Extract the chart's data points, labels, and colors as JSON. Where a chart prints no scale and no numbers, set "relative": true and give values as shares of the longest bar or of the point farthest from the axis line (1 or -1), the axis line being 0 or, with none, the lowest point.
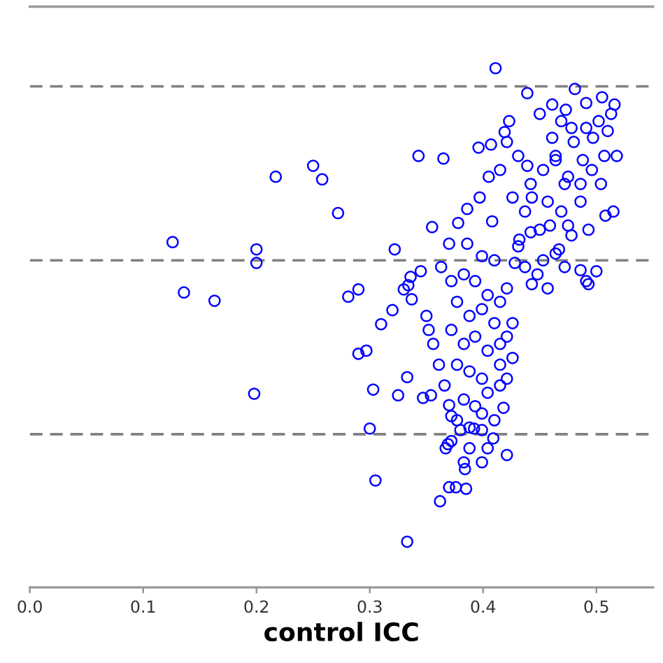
{
  "chart_data": {
    "type": "scatter",
    "xlabel": "control ICC",
    "relative": true,
    "xlim": [
      0,
      0.55
    ],
    "xticks": [
      {
        "value": 0,
        "label": "0.0"
      },
      0.1,
      0.2,
      0.3,
      0.4,
      0.5
    ],
    "tick_labels": "x",
    "grid": false,
    "legend": false,
    "marker": "circle",
    "color": "#0000ff",
    "x": [
      0.126,
      0.136,
      0.163,
      0.2,
      0.2,
      0.198,
      0.217,
      0.25,
      0.258,
      0.272,
      0.281,
      0.29,
      0.31,
      0.29,
      0.297,
      0.303,
      0.3,
      0.305,
      0.333,
      0.362,
      0.37,
      0.376,
      0.385,
      0.384,
      0.367,
      0.369,
      0.409,
      0.418,
      0.399,
      0.392,
      0.38,
      0.372,
      0.37,
      0.347,
      0.354,
      0.325,
      0.333,
      0.32,
      0.33,
      0.337,
      0.336,
      0.345,
      0.352,
      0.457,
      0.472,
      0.486,
      0.491,
      0.5,
      0.443,
      0.415,
      0.421,
      0.411,
      0.343,
      0.365,
      0.355,
      0.322,
      0.439,
      0.481,
      0.505,
      0.516,
      0.518,
      0.491,
      0.45,
      0.423,
      0.419,
      0.396,
      0.407,
      0.405,
      0.415,
      0.397,
      0.386,
      0.378,
      0.408,
      0.37,
      0.386,
      0.363,
      0.334,
      0.493,
      0.508,
      0.504,
      0.51,
      0.478,
      0.464,
      0.472,
      0.457,
      0.443,
      0.486,
      0.45,
      0.478,
      0.432,
      0.493,
      0.515,
      0.467,
      0.428,
      0.439,
      0.461,
      0.488,
      0.497,
      0.461,
      0.473,
      0.372,
      0.383,
      0.393,
      0.404,
      0.377,
      0.388,
      0.399,
      0.41,
      0.372,
      0.383,
      0.393,
      0.404,
      0.415,
      0.377,
      0.388,
      0.399,
      0.366,
      0.383,
      0.393,
      0.404,
      0.415,
      0.377,
      0.388,
      0.399,
      0.41,
      0.372,
      0.388,
      0.404,
      0.421,
      0.399,
      0.383,
      0.356,
      0.361,
      0.35,
      0.415,
      0.421,
      0.426,
      0.426,
      0.421,
      0.41,
      0.399,
      0.437,
      0.448,
      0.453,
      0.464,
      0.431,
      0.442,
      0.459,
      0.469,
      0.475,
      0.437,
      0.426,
      0.442,
      0.453,
      0.464,
      0.475,
      0.486,
      0.496,
      0.507,
      0.48,
      0.491,
      0.502,
      0.513,
      0.469,
      0.431,
      0.421
    ],
    "values": [
      0.665,
      0.568,
      0.552,
      0.651,
      0.625,
      0.373,
      0.791,
      0.812,
      0.786,
      0.721,
      0.56,
      0.574,
      0.507,
      0.45,
      0.456,
      0.381,
      0.306,
      0.206,
      0.088,
      0.166,
      0.193,
      0.193,
      0.19,
      0.228,
      0.268,
      0.276,
      0.287,
      0.346,
      0.303,
      0.306,
      0.303,
      0.33,
      0.351,
      0.365,
      0.37,
      0.37,
      0.405,
      0.534,
      0.574,
      0.555,
      0.598,
      0.609,
      0.496,
      0.576,
      0.617,
      0.611,
      0.59,
      0.609,
      0.584,
      0.429,
      0.483,
      1.0,
      0.831,
      0.826,
      0.694,
      0.651,
      0.952,
      0.96,
      0.944,
      0.93,
      0.831,
      0.933,
      0.912,
      0.898,
      0.877,
      0.847,
      0.853,
      0.791,
      0.804,
      0.751,
      0.729,
      0.702,
      0.705,
      0.662,
      0.662,
      0.617,
      0.582,
      0.584,
      0.716,
      0.777,
      0.879,
      0.885,
      0.823,
      0.777,
      0.743,
      0.751,
      0.743,
      0.689,
      0.678,
      0.67,
      0.689,
      0.724,
      0.651,
      0.625,
      0.812,
      0.866,
      0.823,
      0.866,
      0.93,
      0.92,
      0.59,
      0.603,
      0.59,
      0.563,
      0.55,
      0.523,
      0.536,
      0.509,
      0.496,
      0.469,
      0.483,
      0.456,
      0.469,
      0.429,
      0.416,
      0.402,
      0.389,
      0.362,
      0.349,
      0.375,
      0.389,
      0.322,
      0.308,
      0.335,
      0.322,
      0.282,
      0.268,
      0.268,
      0.255,
      0.241,
      0.241,
      0.469,
      0.429,
      0.523,
      0.55,
      0.576,
      0.509,
      0.442,
      0.402,
      0.63,
      0.638,
      0.617,
      0.603,
      0.63,
      0.643,
      0.657,
      0.684,
      0.697,
      0.724,
      0.697,
      0.724,
      0.751,
      0.777,
      0.804,
      0.831,
      0.791,
      0.777,
      0.804,
      0.831,
      0.858,
      0.885,
      0.898,
      0.912,
      0.898,
      0.831,
      0.858
    ],
    "ref_lines": [
      {
        "axis": "y",
        "value": 0.965,
        "color": "#808080",
        "line_style": "dashed"
      },
      {
        "axis": "y",
        "value": 0.63,
        "color": "#808080",
        "line_style": "dashed"
      },
      {
        "axis": "y",
        "value": 0.295,
        "color": "#808080",
        "line_style": "dashed"
      }
    ]
  }
}
